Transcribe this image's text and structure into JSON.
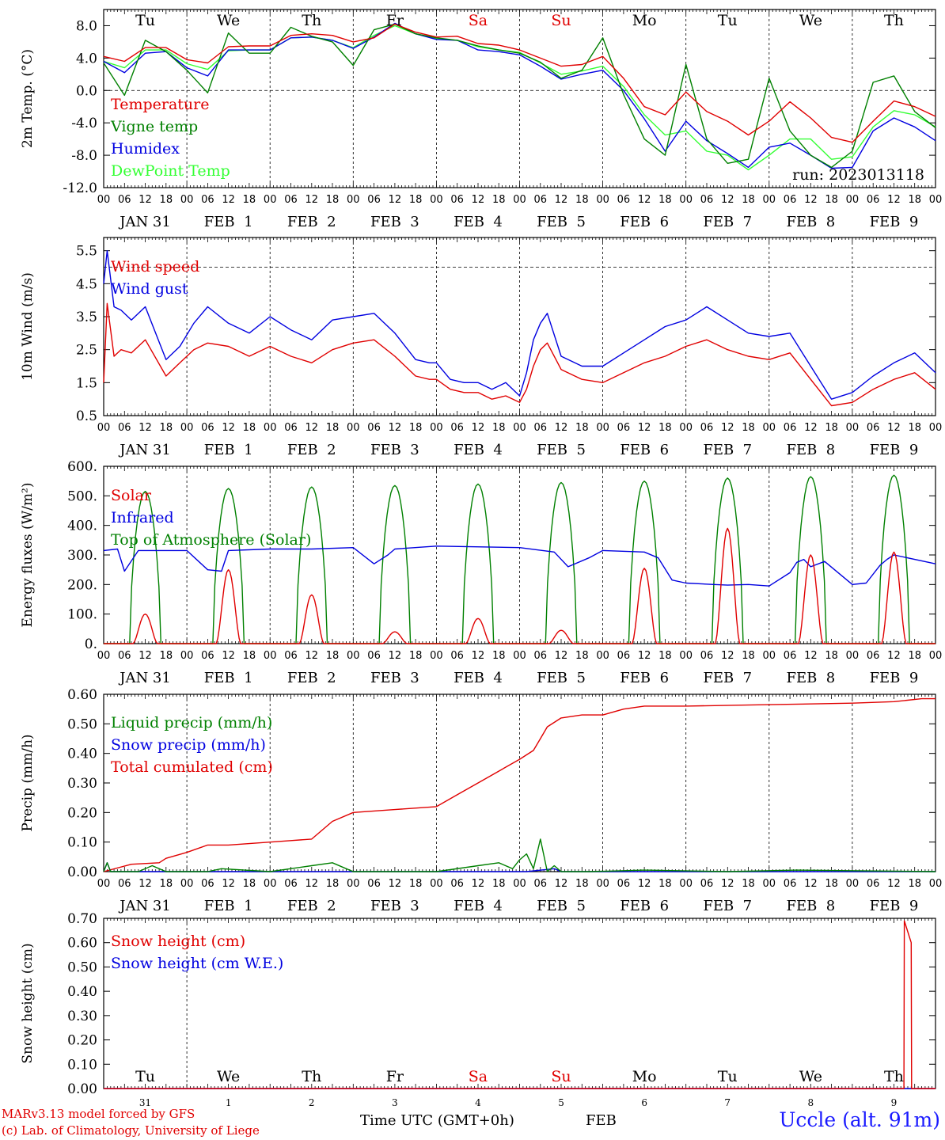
{
  "meta": {
    "run_label": "run: 2023013118",
    "xlabel": "Time UTC (GMT+0h)",
    "month_label": "FEB",
    "station": "Uccle (alt. 91m)",
    "credit_line1": "MARv3.13 model forced by GFS",
    "credit_line2": "(c) Lab. of Climatology, University of Liege"
  },
  "time_axis": {
    "hour_ticks": [
      "00",
      "06",
      "12",
      "18"
    ],
    "date_labels": [
      "JAN 31",
      "FEB  1",
      "FEB  2",
      "FEB  3",
      "FEB  4",
      "FEB  5",
      "FEB  6",
      "FEB  7",
      "FEB  8",
      "FEB  9"
    ],
    "weekdays": [
      "Tu",
      "We",
      "Th",
      "Fr",
      "Sa",
      "Su",
      "Mo",
      "Tu",
      "We",
      "Th"
    ],
    "weekday_colors": [
      "#000000",
      "#000000",
      "#000000",
      "#000000",
      "#e00000",
      "#e00000",
      "#000000",
      "#000000",
      "#000000",
      "#000000"
    ],
    "day_numbers": [
      "31",
      "1",
      "2",
      "3",
      "4",
      "5",
      "6",
      "7",
      "8",
      "9"
    ]
  },
  "chart_data": [
    {
      "type": "line",
      "ylabel": "2m Temp. (°C)",
      "ylim": [
        -12,
        10
      ],
      "yticks": [
        "-12.0",
        "-8.0",
        "-4.0",
        "0.0",
        "4.0",
        "8.0"
      ],
      "ytick_values": [
        -12,
        -8,
        -4,
        0,
        4,
        8
      ],
      "dashed_line": 0,
      "xunit": "hours since JAN 31 00 UTC",
      "series": [
        {
          "name": "Temperature",
          "color": "#e00000",
          "x": [
            0,
            6,
            12,
            18,
            24,
            30,
            36,
            42,
            48,
            54,
            60,
            66,
            72,
            78,
            84,
            90,
            96,
            102,
            108,
            114,
            120,
            126,
            132,
            138,
            144,
            150,
            156,
            162,
            168,
            174,
            180,
            186,
            192,
            198,
            204,
            210,
            216,
            222,
            228,
            234,
            240
          ],
          "y": [
            4.2,
            3.6,
            5.3,
            5.3,
            3.8,
            3.4,
            5.4,
            5.5,
            5.5,
            6.8,
            7.0,
            6.8,
            6.0,
            6.5,
            8.2,
            7.2,
            6.6,
            6.7,
            5.8,
            5.6,
            5.0,
            4.0,
            3.0,
            3.2,
            4.2,
            1.5,
            -2.0,
            -3.0,
            -0.2,
            -2.6,
            -3.8,
            -5.5,
            -3.8,
            -1.4,
            -3.4,
            -5.8,
            -6.4,
            -3.8,
            -1.3,
            -2.0,
            -3.2
          ]
        },
        {
          "name": "Vigne temp",
          "color": "#008000",
          "x": [
            0,
            6,
            12,
            18,
            24,
            30,
            36,
            42,
            48,
            54,
            60,
            66,
            72,
            78,
            84,
            90,
            96,
            102,
            108,
            114,
            120,
            126,
            132,
            138,
            144,
            150,
            156,
            162,
            168,
            174,
            180,
            186,
            192,
            198,
            204,
            210,
            216,
            222,
            228,
            234,
            240
          ],
          "y": [
            3.4,
            -0.6,
            6.2,
            4.8,
            2.5,
            -0.3,
            7.1,
            4.6,
            4.6,
            7.8,
            6.7,
            6.0,
            3.1,
            7.5,
            8.2,
            7.0,
            6.5,
            6.2,
            5.5,
            5.0,
            4.6,
            3.5,
            1.5,
            2.5,
            6.5,
            -0.5,
            -6.0,
            -8.0,
            3.2,
            -6.0,
            -9.0,
            -8.5,
            1.5,
            -5.0,
            -8.0,
            -9.5,
            -7.5,
            1.0,
            1.8,
            -2.6,
            -4.6
          ]
        },
        {
          "name": "Humidex",
          "color": "#0000e0",
          "x": [
            0,
            6,
            12,
            18,
            24,
            30,
            36,
            42,
            48,
            54,
            60,
            66,
            72,
            78,
            84,
            90,
            96,
            102,
            108,
            114,
            120,
            126,
            132,
            138,
            144,
            150,
            156,
            162,
            168,
            174,
            180,
            186,
            192,
            198,
            204,
            210,
            216,
            222,
            228,
            234,
            240
          ],
          "y": [
            3.6,
            2.2,
            4.6,
            4.8,
            2.8,
            1.8,
            5.0,
            5.0,
            5.0,
            6.5,
            6.6,
            6.2,
            5.2,
            6.6,
            8.3,
            7.0,
            6.3,
            6.2,
            5.0,
            4.8,
            4.4,
            3.0,
            1.4,
            2.0,
            2.5,
            0.0,
            -3.5,
            -7.5,
            -3.8,
            -6.2,
            -7.8,
            -9.5,
            -7.0,
            -6.5,
            -8.0,
            -9.6,
            -9.5,
            -5.0,
            -3.4,
            -4.5,
            -6.2
          ]
        },
        {
          "name": "DewPoint Temp",
          "color": "#33ff33",
          "x": [
            0,
            6,
            12,
            18,
            24,
            30,
            36,
            42,
            48,
            54,
            60,
            66,
            72,
            78,
            84,
            90,
            96,
            102,
            108,
            114,
            120,
            126,
            132,
            138,
            144,
            150,
            156,
            162,
            168,
            174,
            180,
            186,
            192,
            198,
            204,
            210,
            216,
            222,
            228,
            234,
            240
          ],
          "y": [
            3.6,
            2.8,
            5.0,
            5.0,
            3.3,
            2.6,
            4.9,
            5.0,
            5.0,
            6.5,
            6.6,
            6.2,
            5.3,
            6.8,
            8.0,
            7.0,
            6.4,
            6.2,
            5.4,
            5.0,
            4.7,
            3.4,
            2.0,
            2.4,
            3.0,
            0.5,
            -3.0,
            -5.5,
            -5.0,
            -7.5,
            -8.0,
            -9.8,
            -8.0,
            -6.0,
            -6.0,
            -8.5,
            -8.2,
            -4.5,
            -2.5,
            -3.0,
            -4.5
          ]
        }
      ]
    },
    {
      "type": "line",
      "ylabel": "10m Wind (m/s)",
      "ylim": [
        0.5,
        5.9
      ],
      "yticks": [
        "0.5",
        "1.5",
        "2.5",
        "3.5",
        "4.5",
        "5.5"
      ],
      "ytick_values": [
        0.5,
        1.5,
        2.5,
        3.5,
        4.5,
        5.5
      ],
      "dashed_line": 5.0,
      "xunit": "hours since JAN 31 00 UTC",
      "series": [
        {
          "name": "Wind speed",
          "color": "#e00000",
          "x": [
            0,
            1,
            3,
            5,
            8,
            12,
            18,
            22,
            26,
            30,
            36,
            42,
            48,
            54,
            60,
            66,
            72,
            78,
            84,
            90,
            94,
            96,
            100,
            104,
            108,
            112,
            116,
            120,
            122,
            124,
            126,
            128,
            132,
            138,
            144,
            150,
            156,
            162,
            168,
            174,
            180,
            186,
            192,
            198,
            204,
            210,
            216,
            222,
            228,
            234,
            240
          ],
          "y": [
            1.5,
            3.9,
            2.3,
            2.5,
            2.4,
            2.8,
            1.7,
            2.1,
            2.5,
            2.7,
            2.6,
            2.3,
            2.6,
            2.3,
            2.1,
            2.5,
            2.7,
            2.8,
            2.3,
            1.7,
            1.6,
            1.6,
            1.3,
            1.2,
            1.2,
            1.0,
            1.1,
            0.9,
            1.3,
            2.0,
            2.5,
            2.7,
            1.9,
            1.6,
            1.5,
            1.8,
            2.1,
            2.3,
            2.6,
            2.8,
            2.5,
            2.3,
            2.2,
            2.4,
            1.6,
            0.8,
            0.9,
            1.3,
            1.6,
            1.8,
            1.3
          ]
        },
        {
          "name": "Wind gust",
          "color": "#0000e0",
          "x": [
            0,
            1,
            3,
            5,
            8,
            12,
            18,
            22,
            26,
            30,
            36,
            42,
            48,
            54,
            60,
            66,
            72,
            78,
            84,
            90,
            94,
            96,
            100,
            104,
            108,
            112,
            116,
            120,
            122,
            124,
            126,
            128,
            132,
            138,
            144,
            150,
            156,
            162,
            168,
            174,
            180,
            186,
            192,
            198,
            204,
            210,
            216,
            222,
            228,
            234,
            240
          ],
          "y": [
            4.5,
            5.5,
            3.8,
            3.7,
            3.4,
            3.8,
            2.2,
            2.6,
            3.3,
            3.8,
            3.3,
            3.0,
            3.5,
            3.1,
            2.8,
            3.4,
            3.5,
            3.6,
            3.0,
            2.2,
            2.1,
            2.1,
            1.6,
            1.5,
            1.5,
            1.3,
            1.5,
            1.1,
            1.8,
            2.8,
            3.3,
            3.6,
            2.3,
            2.0,
            2.0,
            2.4,
            2.8,
            3.2,
            3.4,
            3.8,
            3.4,
            3.0,
            2.9,
            3.0,
            2.0,
            1.0,
            1.2,
            1.7,
            2.1,
            2.4,
            1.8
          ]
        }
      ]
    },
    {
      "type": "line",
      "ylabel": "Energy fluxes (W/m²)",
      "ylim": [
        0,
        600
      ],
      "yticks": [
        "0.",
        "100.",
        "200.",
        "300.",
        "400.",
        "500.",
        "600."
      ],
      "ytick_values": [
        0,
        100,
        200,
        300,
        400,
        500,
        600
      ],
      "xunit": "hours since JAN 31 00 UTC",
      "toa_peaks": [
        515,
        525,
        530,
        535,
        540,
        545,
        550,
        560,
        565,
        570
      ],
      "solar_peaks": [
        100,
        250,
        165,
        40,
        85,
        45,
        255,
        390,
        300,
        310
      ],
      "series": [
        {
          "name": "Solar",
          "color": "#e00000",
          "x": [],
          "y": []
        },
        {
          "name": "Infrared",
          "color": "#0000e0",
          "x": [
            0,
            4,
            6,
            10,
            24,
            30,
            34,
            36,
            48,
            60,
            72,
            78,
            82,
            84,
            96,
            120,
            130,
            134,
            140,
            144,
            156,
            160,
            164,
            168,
            176,
            180,
            186,
            192,
            198,
            200,
            202,
            204,
            208,
            216,
            220,
            224,
            226,
            228,
            240
          ],
          "y": [
            315,
            320,
            245,
            315,
            315,
            250,
            245,
            315,
            320,
            320,
            325,
            270,
            300,
            320,
            330,
            325,
            310,
            260,
            290,
            315,
            310,
            290,
            215,
            205,
            200,
            198,
            200,
            195,
            240,
            275,
            285,
            260,
            278,
            200,
            205,
            265,
            285,
            300,
            270
          ]
        },
        {
          "name": "Top of Atmosphere (Solar)",
          "color": "#008000",
          "x": [],
          "y": []
        }
      ]
    },
    {
      "type": "line",
      "ylabel": "Precip (mm/h)",
      "ylim": [
        0,
        0.6
      ],
      "yticks": [
        "0.00",
        "0.10",
        "0.20",
        "0.30",
        "0.40",
        "0.50",
        "0.60"
      ],
      "ytick_values": [
        0,
        0.1,
        0.2,
        0.3,
        0.4,
        0.5,
        0.6
      ],
      "xunit": "hours since JAN 31 00 UTC",
      "series": [
        {
          "name": "Liquid precip (mm/h)",
          "color": "#008000",
          "x": [
            0,
            1,
            2,
            3,
            10,
            14,
            16,
            18,
            22,
            30,
            34,
            48,
            60,
            66,
            70,
            72,
            74,
            96,
            108,
            114,
            118,
            120,
            122,
            124,
            126,
            128,
            130,
            132,
            140,
            156,
            180,
            200,
            240
          ],
          "y": [
            0,
            0.03,
            0.0,
            0.0,
            0.0,
            0.02,
            0.01,
            0.0,
            0.0,
            0.0,
            0.01,
            0.0,
            0.02,
            0.03,
            0.01,
            0.0,
            0.0,
            0.0,
            0.02,
            0.03,
            0.01,
            0.04,
            0.06,
            0.01,
            0.11,
            0.0,
            0.02,
            0.0,
            0.0,
            0.005,
            0.0,
            0.005,
            0.0
          ]
        },
        {
          "name": "Snow precip (mm/h)",
          "color": "#0000e0",
          "x": [
            0,
            1,
            2,
            3,
            120,
            122,
            130,
            132,
            240
          ],
          "y": [
            0,
            0.03,
            0,
            0,
            0,
            0,
            0.01,
            0,
            0
          ]
        },
        {
          "name": "Total cumulated (cm)",
          "color": "#e00000",
          "x": [
            0,
            8,
            16,
            18,
            24,
            30,
            36,
            48,
            54,
            60,
            66,
            72,
            84,
            96,
            102,
            108,
            114,
            120,
            124,
            126,
            128,
            132,
            138,
            144,
            150,
            156,
            168,
            192,
            216,
            228,
            236,
            240
          ],
          "y": [
            0.0,
            0.025,
            0.03,
            0.045,
            0.065,
            0.09,
            0.09,
            0.1,
            0.105,
            0.11,
            0.17,
            0.2,
            0.21,
            0.22,
            0.26,
            0.3,
            0.34,
            0.38,
            0.41,
            0.45,
            0.49,
            0.52,
            0.53,
            0.53,
            0.55,
            0.56,
            0.56,
            0.565,
            0.57,
            0.575,
            0.585,
            0.585
          ]
        }
      ]
    },
    {
      "type": "line",
      "ylabel": "Snow height (cm)",
      "ylim": [
        0,
        0.7
      ],
      "yticks": [
        "0.00",
        "0.10",
        "0.20",
        "0.30",
        "0.40",
        "0.50",
        "0.60",
        "0.70"
      ],
      "ytick_values": [
        0,
        0.1,
        0.2,
        0.3,
        0.4,
        0.5,
        0.6,
        0.7
      ],
      "xunit": "hours since JAN 31 00 UTC",
      "series": [
        {
          "name": "Snow height (cm)",
          "color": "#e00000",
          "x": [
            0,
            230.9,
            231,
            233,
            233.1,
            240
          ],
          "y": [
            0,
            0,
            0.69,
            0.6,
            0,
            0
          ]
        },
        {
          "name": "Snow height (cm W.E.)",
          "color": "#0000e0",
          "x": [
            0,
            240
          ],
          "y": [
            0,
            0
          ]
        }
      ]
    }
  ]
}
